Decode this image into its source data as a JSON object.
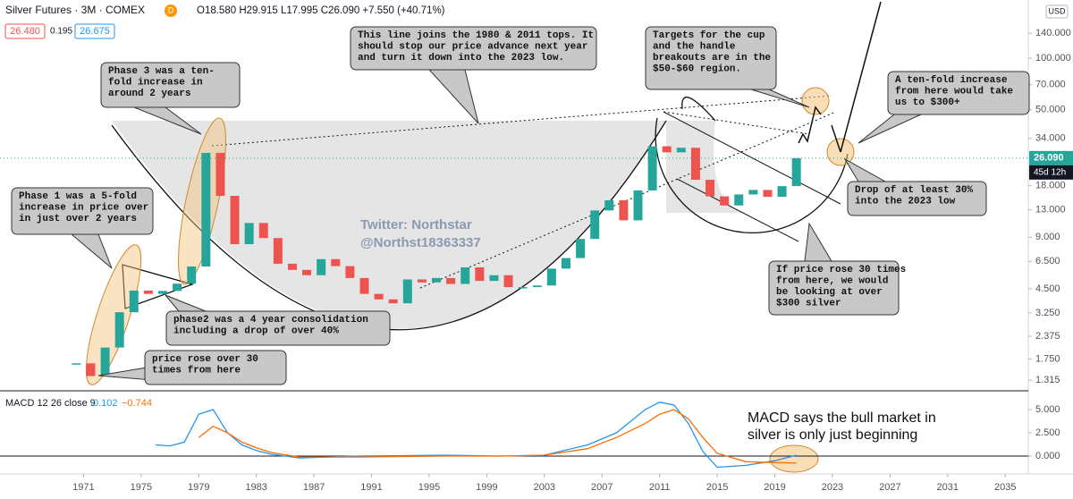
{
  "header": {
    "symbol": "Silver Futures · 3M · COMEX",
    "badge": "D",
    "ohlc": "O18.580 H29.915 L17.995 C26.090 +7.550 (+40.71%)",
    "bid": "26.480",
    "spread": "0.195",
    "ask": "26.675",
    "currency": "USD"
  },
  "chart_data": [
    {
      "type": "candlestick",
      "yscale": "log",
      "xlim": [
        1965.2,
        2036.6
      ],
      "ylim": [
        1.14,
        219
      ],
      "yticks": [
        1.315,
        {
          "value": 1.75,
          "label": "1.750"
        },
        {
          "value": 2.375,
          "label": "2.375"
        },
        {
          "value": 3.25,
          "label": "3.250"
        },
        {
          "value": 4.5,
          "label": "4.500"
        },
        {
          "value": 6.5,
          "label": "6.500"
        },
        {
          "value": 9,
          "label": "9.000"
        },
        {
          "value": 13,
          "label": "13.000"
        },
        {
          "value": 18,
          "label": "18.000"
        },
        {
          "value": 34,
          "label": "34.000"
        },
        {
          "value": 50,
          "label": "50.000"
        },
        {
          "value": 70,
          "label": "70.000"
        },
        {
          "value": 100,
          "label": "100.000"
        },
        {
          "value": 140,
          "label": "140.000"
        }
      ],
      "x": [
        1970.5,
        1971.5,
        1972.5,
        1973.5,
        1974.5,
        1975.5,
        1976.5,
        1977.5,
        1978.5,
        1979.5,
        1980.5,
        1981.5,
        1982.5,
        1983.5,
        1984.5,
        1985.5,
        1986.5,
        1987.5,
        1988.5,
        1989.5,
        1990.5,
        1991.5,
        1992.5,
        1993.5,
        1994.5,
        1995.5,
        1996.5,
        1997.5,
        1998.5,
        1999.5,
        2000.5,
        2001.5,
        2002.5,
        2003.5,
        2004.5,
        2005.5,
        2006.5,
        2007.5,
        2008.5,
        2009.5,
        2010.5,
        2011.5,
        2012.5,
        2013.5,
        2014.5,
        2015.5,
        2016.5,
        2017.5,
        2018.5,
        2019.5,
        2020.5
      ],
      "series": [
        {
          "color_up": "#26a69a",
          "color_down": "#ef5350",
          "values": [
            1.65,
            1.39,
            2.04,
            3.28,
            4.39,
            4.2,
            4.37,
            4.82,
            6.07,
            28,
            15.7,
            8.2,
            10.9,
            8.9,
            6.3,
            5.8,
            5.4,
            6.7,
            6.1,
            5.2,
            4.2,
            3.9,
            3.7,
            5.1,
            4.9,
            5.2,
            4.8,
            6,
            5,
            5.4,
            4.6,
            4.6,
            4.7,
            5.9,
            6.8,
            8.8,
            12.9,
            14.8,
            11.3,
            16.9,
            30.6,
            28.2,
            30,
            19.5,
            15.6,
            13.8,
            16,
            17,
            15.5,
            17.9,
            26.09
          ]
        }
      ],
      "last_price": {
        "value": 26.09,
        "label": "26.090"
      },
      "countdown": "45d 12h",
      "annotations": [
        [
          "Phase 3 was a ten-",
          "fold increase in",
          "around 2 years"
        ],
        [
          "Twitter: Northstar",
          "@Northst18363337"
        ],
        [
          "This line joins the 1980 & 2011 tops. It",
          "should stop our price advance next year",
          "and turn it down into the 2023 low."
        ],
        [
          "Targets for the cup",
          "and the handle",
          "breakouts are in the",
          "$50-$60 region."
        ],
        [
          "A ten-fold increase",
          "from here would take",
          "us to $300+"
        ],
        [
          "Phase 1 was a 5-fold",
          "increase in price over",
          "in just over 2 years"
        ],
        [
          "phase2 was a 4 year consolidation",
          "including a drop of over 40%"
        ],
        [
          "price rose over 30",
          "times from here"
        ],
        [
          "Drop of at least 30%",
          "into the 2023 low"
        ],
        [
          "If price rose 30 times",
          "from here, we would",
          "be looking at over",
          "$300 silver"
        ],
        [
          "MACD says the bull market in",
          "silver is only just beginning"
        ]
      ]
    },
    {
      "type": "line",
      "title": "MACD 12 26 close 9",
      "xlim": [
        1965.2,
        2036.6
      ],
      "ylim": [
        -1.92,
        6.92
      ],
      "yticks": [
        {
          "value": 5,
          "label": "5.000"
        },
        {
          "value": 2.5,
          "label": "2.500"
        },
        {
          "value": 0,
          "label": "0.000"
        }
      ],
      "xticks": [
        1971,
        1975,
        1979,
        1983,
        1987,
        1991,
        1995,
        1999,
        2003,
        2007,
        2011,
        2015,
        2019,
        2023,
        2027,
        2031,
        2035
      ],
      "legend_values": [
        "0.102",
        "−0.744"
      ],
      "x": [
        1976,
        1977,
        1978,
        1979,
        1980,
        1981,
        1982,
        1983,
        1984,
        1986,
        1990,
        1996,
        2000,
        2003,
        2006,
        2008,
        2010,
        2011,
        2012,
        2013,
        2014,
        2015,
        2017,
        2019,
        2020.5
      ],
      "series": [
        {
          "color": "#2196f3",
          "values": [
            1.2,
            1.1,
            1.5,
            4.5,
            5,
            2.5,
            1.2,
            0.6,
            0.2,
            -0.2,
            0,
            0.1,
            0,
            0.1,
            1.2,
            2.5,
            5,
            5.8,
            5.5,
            3.5,
            0.5,
            -1.2,
            -1,
            -0.5,
            0.102
          ]
        },
        {
          "color": "#ff6d00",
          "values": [
            null,
            null,
            null,
            2,
            3.2,
            2.5,
            1.5,
            0.9,
            0.4,
            -0.1,
            -0.1,
            0,
            0,
            0.1,
            0.8,
            2,
            3.5,
            4.5,
            5,
            4,
            2,
            0.3,
            -0.6,
            -0.7,
            -0.744
          ]
        }
      ]
    }
  ]
}
